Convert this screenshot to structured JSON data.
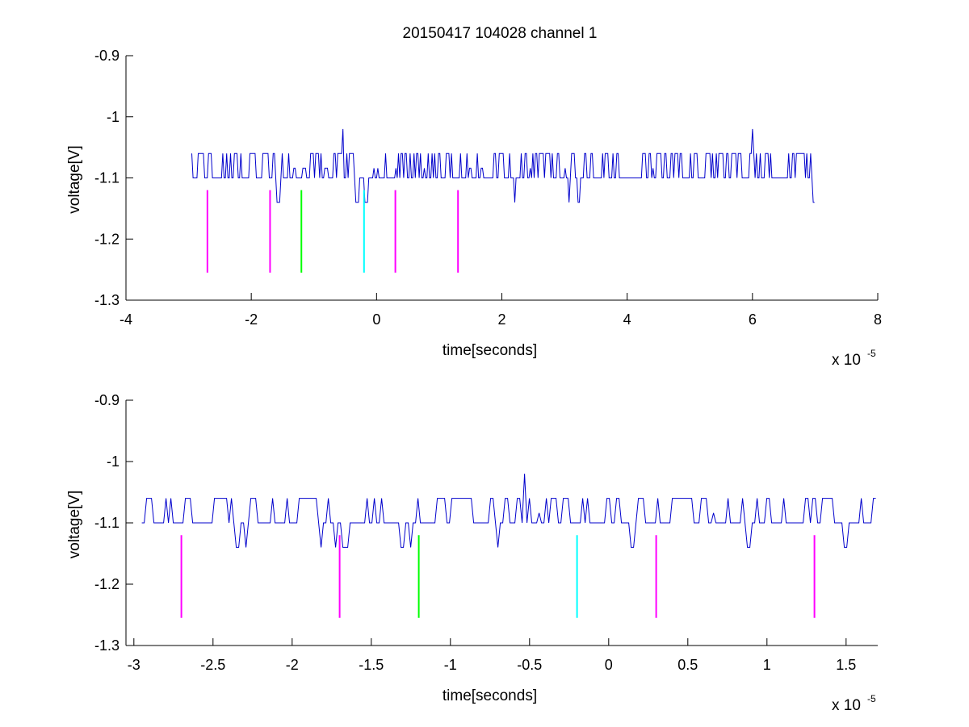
{
  "figure": {
    "title": "20150417 104028 channel 1"
  },
  "chart_data": [
    {
      "type": "line",
      "title": "20150417 104028 channel 1",
      "xlabel": "time[seconds]",
      "ylabel": "voltage[V]",
      "x_multiplier_base": "x 10",
      "x_multiplier_exp": "-5",
      "xlim": [
        -4e-05,
        8e-05
      ],
      "ylim": [
        -1.3,
        -0.9
      ],
      "xticks": [
        -4e-05,
        -2e-05,
        0,
        2e-05,
        4e-05,
        6e-05,
        8e-05
      ],
      "xtick_labels": [
        "-4",
        "-2",
        "0",
        "2",
        "4",
        "6",
        "8"
      ],
      "yticks": [
        -1.3,
        -1.2,
        -1.1,
        -1.0,
        -0.9
      ],
      "ytick_labels": [
        "-1.3",
        "-1.2",
        "-1.1",
        "-1",
        "-0.9"
      ],
      "grid": false,
      "signal": {
        "color": "#0000cc",
        "x_start": -2.95e-05,
        "x_end": 7e-05,
        "baseline": -1.1,
        "high": -1.06,
        "low": -1.14,
        "spikes": [
          {
            "x": -5.3e-06,
            "y": -1.02
          },
          {
            "x": 6e-05,
            "y": -1.02
          }
        ]
      },
      "markers": [
        {
          "x": -2.7e-05,
          "y_top": -1.12,
          "y_bottom": -1.255,
          "color": "#ff00ff"
        },
        {
          "x": -1.7e-05,
          "y_top": -1.12,
          "y_bottom": -1.255,
          "color": "#ff00ff"
        },
        {
          "x": -1.2e-05,
          "y_top": -1.12,
          "y_bottom": -1.255,
          "color": "#00ff00"
        },
        {
          "x": -2e-06,
          "y_top": -1.12,
          "y_bottom": -1.255,
          "color": "#00ffff"
        },
        {
          "x": 3e-06,
          "y_top": -1.12,
          "y_bottom": -1.255,
          "color": "#ff00ff"
        },
        {
          "x": 1.3e-05,
          "y_top": -1.12,
          "y_bottom": -1.255,
          "color": "#ff00ff"
        }
      ]
    },
    {
      "type": "line",
      "title": "",
      "xlabel": "time[seconds]",
      "ylabel": "voltage[V]",
      "x_multiplier_base": "x 10",
      "x_multiplier_exp": "-5",
      "xlim": [
        -3.05e-05,
        1.7e-05
      ],
      "ylim": [
        -1.3,
        -0.9
      ],
      "xticks": [
        -3e-05,
        -2.5e-05,
        -2e-05,
        -1.5e-05,
        -1e-05,
        -5e-06,
        0,
        5e-06,
        1e-05,
        1.5e-05
      ],
      "xtick_labels": [
        "-3",
        "-2.5",
        "-2",
        "-1.5",
        "-1",
        "-0.5",
        "0",
        "0.5",
        "1",
        "1.5"
      ],
      "yticks": [
        -1.3,
        -1.2,
        -1.1,
        -1.0,
        -0.9
      ],
      "ytick_labels": [
        "-1.3",
        "-1.2",
        "-1.1",
        "-1",
        "-0.9"
      ],
      "grid": false,
      "signal": {
        "color": "#0000cc",
        "x_start": -2.95e-05,
        "x_end": 1.7e-05,
        "baseline": -1.1,
        "high": -1.06,
        "low": -1.14,
        "spikes": [
          {
            "x": -5.3e-06,
            "y": -1.02
          }
        ]
      },
      "markers": [
        {
          "x": -2.7e-05,
          "y_top": -1.12,
          "y_bottom": -1.255,
          "color": "#ff00ff"
        },
        {
          "x": -1.7e-05,
          "y_top": -1.12,
          "y_bottom": -1.255,
          "color": "#ff00ff"
        },
        {
          "x": -1.2e-05,
          "y_top": -1.12,
          "y_bottom": -1.255,
          "color": "#00ff00"
        },
        {
          "x": -2e-06,
          "y_top": -1.12,
          "y_bottom": -1.255,
          "color": "#00ffff"
        },
        {
          "x": 3e-06,
          "y_top": -1.12,
          "y_bottom": -1.255,
          "color": "#ff00ff"
        },
        {
          "x": 1.3e-05,
          "y_top": -1.12,
          "y_bottom": -1.255,
          "color": "#ff00ff"
        }
      ]
    }
  ]
}
